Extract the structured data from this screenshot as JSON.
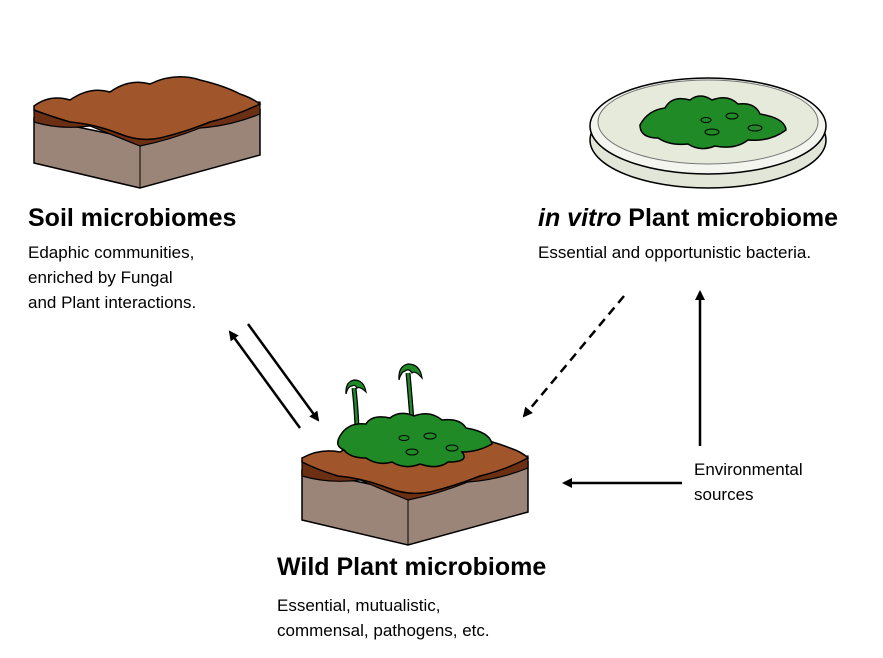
{
  "soil": {
    "title": "Soil microbiomes",
    "desc": [
      "Edaphic communities,",
      "enriched by Fungal",
      "and Plant interactions."
    ]
  },
  "invitro": {
    "title_italic": "in vitro",
    "title_rest": " Plant microbiome",
    "desc": [
      "Essential and opportunistic bacteria."
    ]
  },
  "wild": {
    "title": "Wild Plant microbiome",
    "desc": [
      "Essential, mutualistic,",
      "commensal, pathogens, etc."
    ]
  },
  "environment": {
    "desc": [
      "Environmental",
      "sources"
    ]
  },
  "colors": {
    "soil_top": "#a0552a",
    "soil_dark": "#6b2f14",
    "soil_side": "#9b8478",
    "plant_green": "#1f8a26",
    "petri": "#e2e6d8"
  }
}
